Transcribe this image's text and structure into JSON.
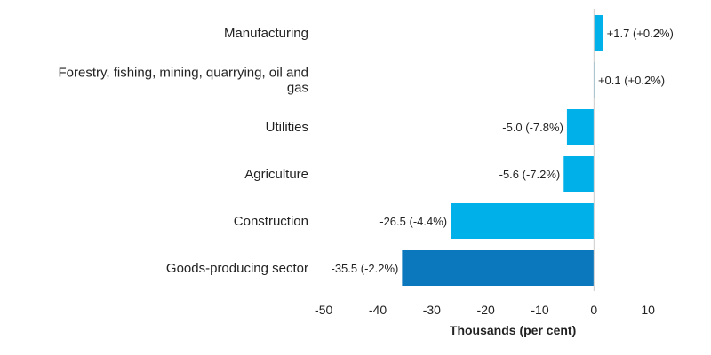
{
  "chart_data": {
    "type": "bar",
    "orientation": "horizontal",
    "categories": [
      [
        "Manufacturing"
      ],
      [
        "Forestry, fishing, mining, quarrying, oil and",
        "gas"
      ],
      [
        "Utilities"
      ],
      [
        "Agriculture"
      ],
      [
        "Construction"
      ],
      [
        "Goods-producing sector"
      ]
    ],
    "values": [
      1.7,
      0.1,
      -5.0,
      -5.6,
      -26.5,
      -35.5
    ],
    "value_labels": [
      "+1.7 (+0.2%)",
      "+0.1 (+0.2%)",
      "-5.0 (-7.8%)",
      "-5.6 (-7.2%)",
      "-26.5 (-4.4%)",
      "-35.5 (-2.2%)"
    ],
    "bar_colors": [
      "#00B0E8",
      "#00B0E8",
      "#00B0E8",
      "#00B0E8",
      "#00B0E8",
      "#0B78BE"
    ],
    "xlabel": "Thousands (per cent)",
    "xlim": [
      -52,
      20
    ],
    "xticks": [
      -50,
      -40,
      -30,
      -20,
      -10,
      0,
      10
    ],
    "xtick_labels": [
      "-50",
      "-40",
      "-30",
      "-20",
      "-10",
      "0",
      "10"
    ],
    "grid": false,
    "legend": "none"
  }
}
